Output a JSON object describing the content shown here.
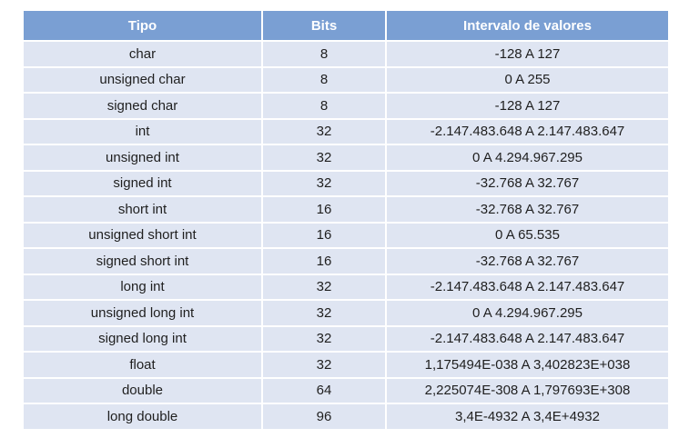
{
  "table": {
    "headers": [
      "Tipo",
      "Bits",
      "Intervalo de valores"
    ],
    "rows": [
      [
        "char",
        "8",
        "-128 A 127"
      ],
      [
        "unsigned char",
        "8",
        "0 A 255"
      ],
      [
        "signed char",
        "8",
        "-128 A 127"
      ],
      [
        "int",
        "32",
        "-2.147.483.648 A 2.147.483.647"
      ],
      [
        "unsigned int",
        "32",
        "0 A 4.294.967.295"
      ],
      [
        "signed int",
        "32",
        "-32.768 A 32.767"
      ],
      [
        "short int",
        "16",
        "-32.768 A 32.767"
      ],
      [
        "unsigned short int",
        "16",
        "0 A 65.535"
      ],
      [
        "signed short int",
        "16",
        "-32.768 A 32.767"
      ],
      [
        "long int",
        "32",
        "-2.147.483.648 A 2.147.483.647"
      ],
      [
        "unsigned long int",
        "32",
        "0 A 4.294.967.295"
      ],
      [
        "signed long int",
        "32",
        "-2.147.483.648 A 2.147.483.647"
      ],
      [
        "float",
        "32",
        "1,175494E-038 A 3,402823E+038"
      ],
      [
        "double",
        "64",
        "2,225074E-308 A 1,797693E+308"
      ],
      [
        "long double",
        "96",
        "3,4E-4932 A 3,4E+4932"
      ]
    ]
  },
  "colors": {
    "header_bg": "#7a9fd3",
    "header_text": "#ffffff",
    "row_bg": "#dfe5f2",
    "row_text": "#1f1f1f"
  }
}
